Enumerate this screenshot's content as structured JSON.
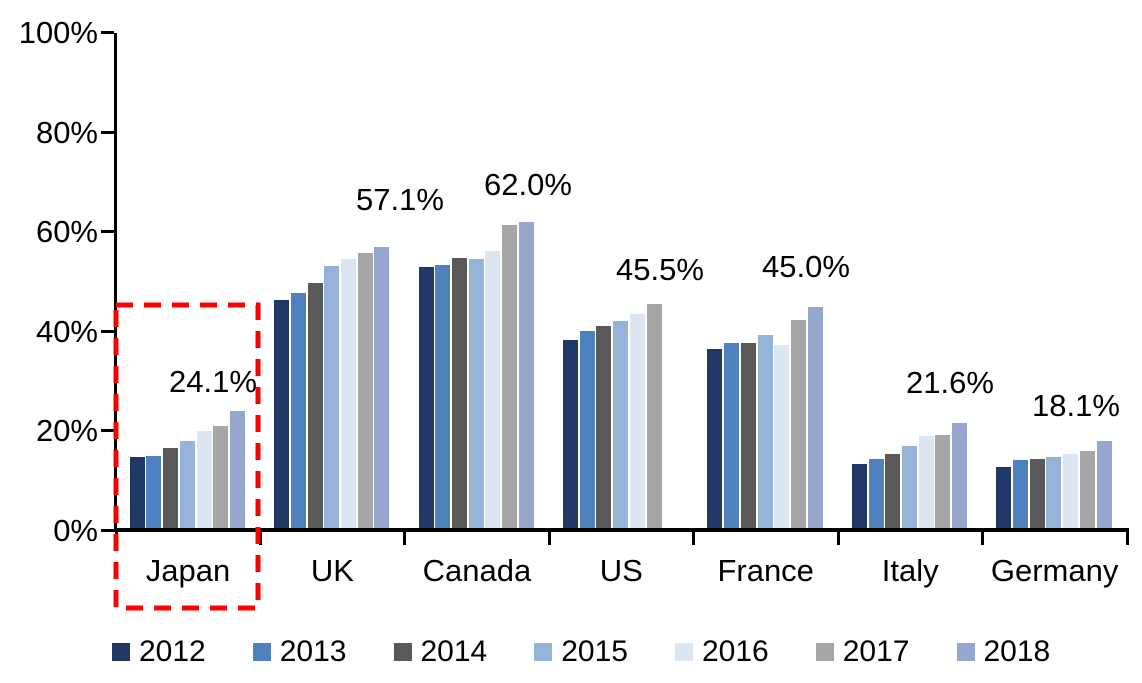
{
  "chart_data": {
    "type": "bar",
    "title": "",
    "xlabel": "",
    "ylabel": "",
    "ylim": [
      0,
      100
    ],
    "y_ticks": [
      "0%",
      "20%",
      "40%",
      "60%",
      "80%",
      "100%"
    ],
    "grid": false,
    "legend_position": "bottom",
    "categories": [
      "Japan",
      "UK",
      "Canada",
      "US",
      "France",
      "Italy",
      "Germany"
    ],
    "series": [
      {
        "name": "2012",
        "color": "#1F3864",
        "values": [
          14.9,
          46.3,
          53.1,
          38.3,
          36.5,
          13.5,
          12.8
        ]
      },
      {
        "name": "2013",
        "color": "#4E81BD",
        "values": [
          15.1,
          47.9,
          53.4,
          40.1,
          37.7,
          14.4,
          14.2
        ]
      },
      {
        "name": "2014",
        "color": "#595959",
        "values": [
          16.7,
          49.9,
          54.9,
          41.2,
          37.7,
          15.4,
          14.5
        ]
      },
      {
        "name": "2015",
        "color": "#95B3D7",
        "values": [
          18.1,
          53.2,
          54.7,
          42.2,
          39.3,
          17.0,
          14.9
        ]
      },
      {
        "name": "2016",
        "color": "#DCE6F2",
        "values": [
          20.1,
          54.7,
          56.2,
          43.6,
          37.4,
          19.1,
          15.5
        ]
      },
      {
        "name": "2017",
        "color": "#A6A6A6",
        "values": [
          21.1,
          55.8,
          61.5,
          45.5,
          42.3,
          19.3,
          16.0
        ]
      },
      {
        "name": "2018",
        "color": "#95A6CF",
        "values": [
          24.1,
          57.1,
          62.0,
          null,
          45.0,
          21.6,
          18.1
        ]
      }
    ],
    "peak_labels": [
      "24.1%",
      "57.1%",
      "62.0%",
      "45.5%",
      "45.0%",
      "21.6%",
      "18.1%"
    ],
    "annotations": {
      "highlight_box": {
        "category": "Japan",
        "color": "#FF0000",
        "style": "dashed"
      }
    },
    "colors": {
      "axis": "#000000",
      "text": "#000000",
      "background": "#FFFFFF"
    }
  }
}
